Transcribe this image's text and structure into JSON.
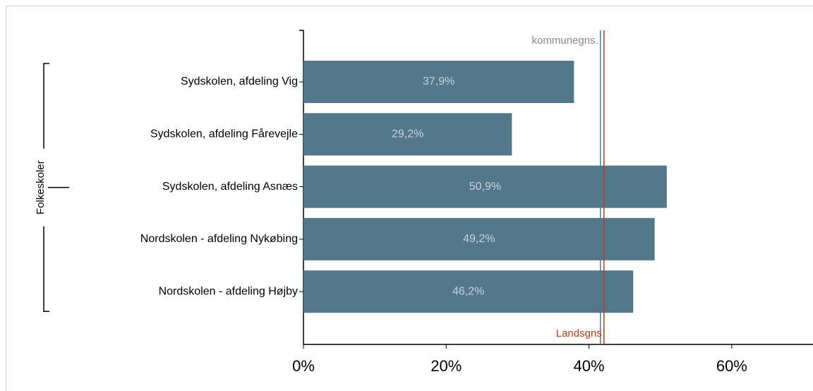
{
  "chart_data": {
    "type": "bar",
    "orientation": "horizontal",
    "group_label": "Folkeskoler",
    "categories": [
      "Sydskolen, afdeling Vig",
      "Sydskolen, afdeling Fårevejle",
      "Sydskolen, afdeling Asnæs",
      "Nordskolen - afdeling Nykøbing",
      "Nordskolen - afdeling Højby"
    ],
    "values": [
      37.9,
      29.2,
      50.9,
      49.2,
      46.2
    ],
    "value_labels": [
      "37,9%",
      "29,2%",
      "50,9%",
      "49,2%",
      "46,2%"
    ],
    "color": "#53788b",
    "xlim": [
      0,
      70
    ],
    "xticks": [
      {
        "value": 0,
        "label": "0%"
      },
      {
        "value": 20,
        "label": "20%"
      },
      {
        "value": 40,
        "label": "40%"
      },
      {
        "value": 60,
        "label": "60%"
      }
    ],
    "reference_lines": [
      {
        "label": "kommunegns.",
        "value": 41.6,
        "color": "#53788b",
        "label_position": "top"
      },
      {
        "label": "Landsgns",
        "value": 42.1,
        "color": "#c0391b",
        "label_position": "bottom"
      }
    ]
  }
}
